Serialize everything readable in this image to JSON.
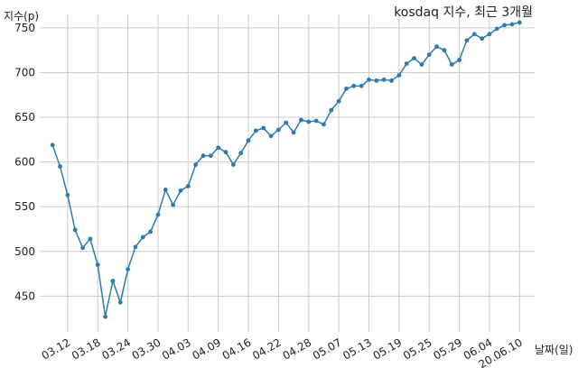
{
  "chart_data": {
    "type": "line",
    "title": "kosdaq 지수, 최근 3개월",
    "xlabel": "날짜(일)",
    "ylabel": "지수(p)",
    "ylim": [
      410,
      765
    ],
    "yticks": [
      450,
      500,
      550,
      600,
      650,
      700,
      750
    ],
    "grid": true,
    "line_color": "#2e7bb0",
    "xtick_labels": [
      "03.12",
      "03.18",
      "03.24",
      "03.30",
      "04.03",
      "04.09",
      "04.16",
      "04.22",
      "04.28",
      "05.07",
      "05.13",
      "05.19",
      "05.25",
      "05.29",
      "06.04",
      "20.06.10"
    ],
    "xtick_positions": [
      2,
      6,
      10,
      14,
      18,
      22,
      26,
      30,
      34,
      38,
      42,
      46,
      50,
      54,
      58,
      62
    ],
    "x_range": [
      -1.7,
      64
    ],
    "values": [
      619,
      595,
      563,
      524,
      504,
      514,
      485,
      427,
      467,
      443,
      480,
      505,
      516,
      522,
      541,
      569,
      552,
      568,
      573,
      597,
      607,
      607,
      616,
      611,
      597,
      610,
      624,
      635,
      638,
      629,
      636,
      644,
      633,
      647,
      645,
      646,
      642,
      658,
      668,
      682,
      685,
      685,
      692,
      691,
      692,
      691,
      697,
      710,
      716,
      709,
      720,
      729,
      725,
      709,
      714,
      736,
      743,
      738,
      743,
      749,
      753,
      754,
      756
    ]
  }
}
